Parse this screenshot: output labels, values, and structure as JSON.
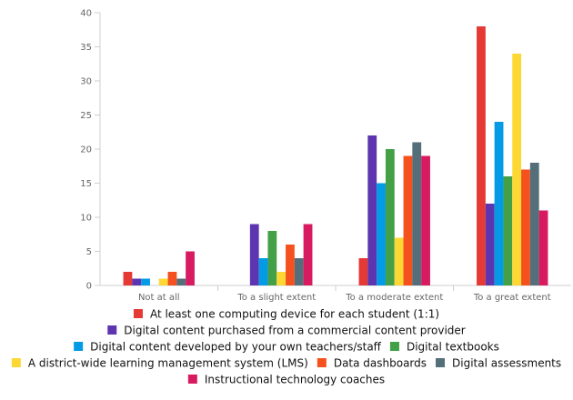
{
  "chart_data": {
    "type": "bar",
    "title": "",
    "xlabel": "",
    "ylabel": "",
    "ylim": [
      0,
      40
    ],
    "yticks": [
      0,
      5,
      10,
      15,
      20,
      25,
      30,
      35,
      40
    ],
    "grid": false,
    "legend_position": "bottom",
    "categories": [
      "Not at all",
      "To a slight extent",
      "To a moderate extent",
      "To a great extent"
    ],
    "series": [
      {
        "name": "At least one computing device for each student (1:1)",
        "color": "#e53935",
        "values": [
          2,
          0,
          4,
          38
        ]
      },
      {
        "name": "Digital content purchased from a commercial content provider",
        "color": "#5e35b1",
        "values": [
          1,
          9,
          22,
          12
        ]
      },
      {
        "name": "Digital content developed by your own teachers/staff",
        "color": "#039be5",
        "values": [
          1,
          4,
          15,
          24
        ]
      },
      {
        "name": "Digital textbooks",
        "color": "#43a047",
        "values": [
          0,
          8,
          20,
          16
        ]
      },
      {
        "name": "A district-wide learning management system (LMS)",
        "color": "#fdd835",
        "values": [
          1,
          2,
          7,
          34
        ]
      },
      {
        "name": "Data dashboards",
        "color": "#f4511e",
        "values": [
          2,
          6,
          19,
          17
        ]
      },
      {
        "name": "Digital assessments",
        "color": "#546e7a",
        "values": [
          1,
          4,
          21,
          18
        ]
      },
      {
        "name": "Instructional technology coaches",
        "color": "#d81b60",
        "values": [
          5,
          9,
          19,
          11
        ]
      }
    ]
  }
}
